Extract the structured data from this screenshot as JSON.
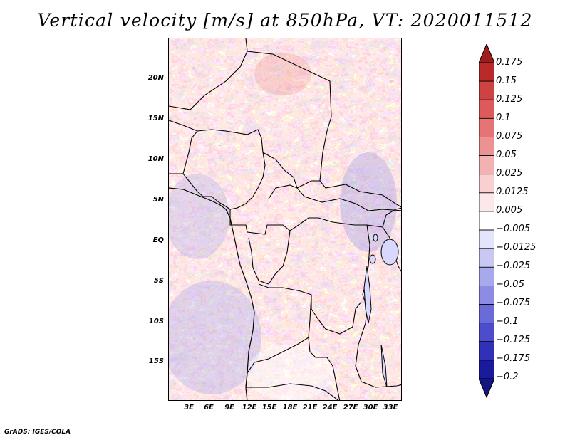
{
  "title": "Vertical velocity [m/s] at 850hPa, VT: 2020011512",
  "credit": "GrADS: IGES/COLA",
  "map": {
    "lat_labels": [
      "20N",
      "15N",
      "10N",
      "5N",
      "EQ",
      "5S",
      "10S",
      "15S"
    ],
    "lon_labels": [
      "3E",
      "6E",
      "9E",
      "12E",
      "15E",
      "18E",
      "21E",
      "24E",
      "27E",
      "30E",
      "33E"
    ]
  },
  "colorbar": {
    "levels": [
      "0.175",
      "0.15",
      "0.125",
      "0.1",
      "0.075",
      "0.05",
      "0.025",
      "0.0125",
      "0.005",
      "−0.005",
      "−0.0125",
      "−0.025",
      "−0.05",
      "−0.075",
      "−0.1",
      "−0.125",
      "−0.175",
      "−0.2"
    ],
    "colors": [
      "#a01c1c",
      "#bb2a2a",
      "#cf4242",
      "#dc5a5a",
      "#e57575",
      "#ec9292",
      "#f3b2b2",
      "#f8d0d0",
      "#fce8e8",
      "#ffffff",
      "#e4e4fa",
      "#c8c8f2",
      "#a8a8ec",
      "#8c8ce4",
      "#6a6ad8",
      "#4c4ccc",
      "#3030b8",
      "#1a1a9c",
      "#141482"
    ]
  }
}
